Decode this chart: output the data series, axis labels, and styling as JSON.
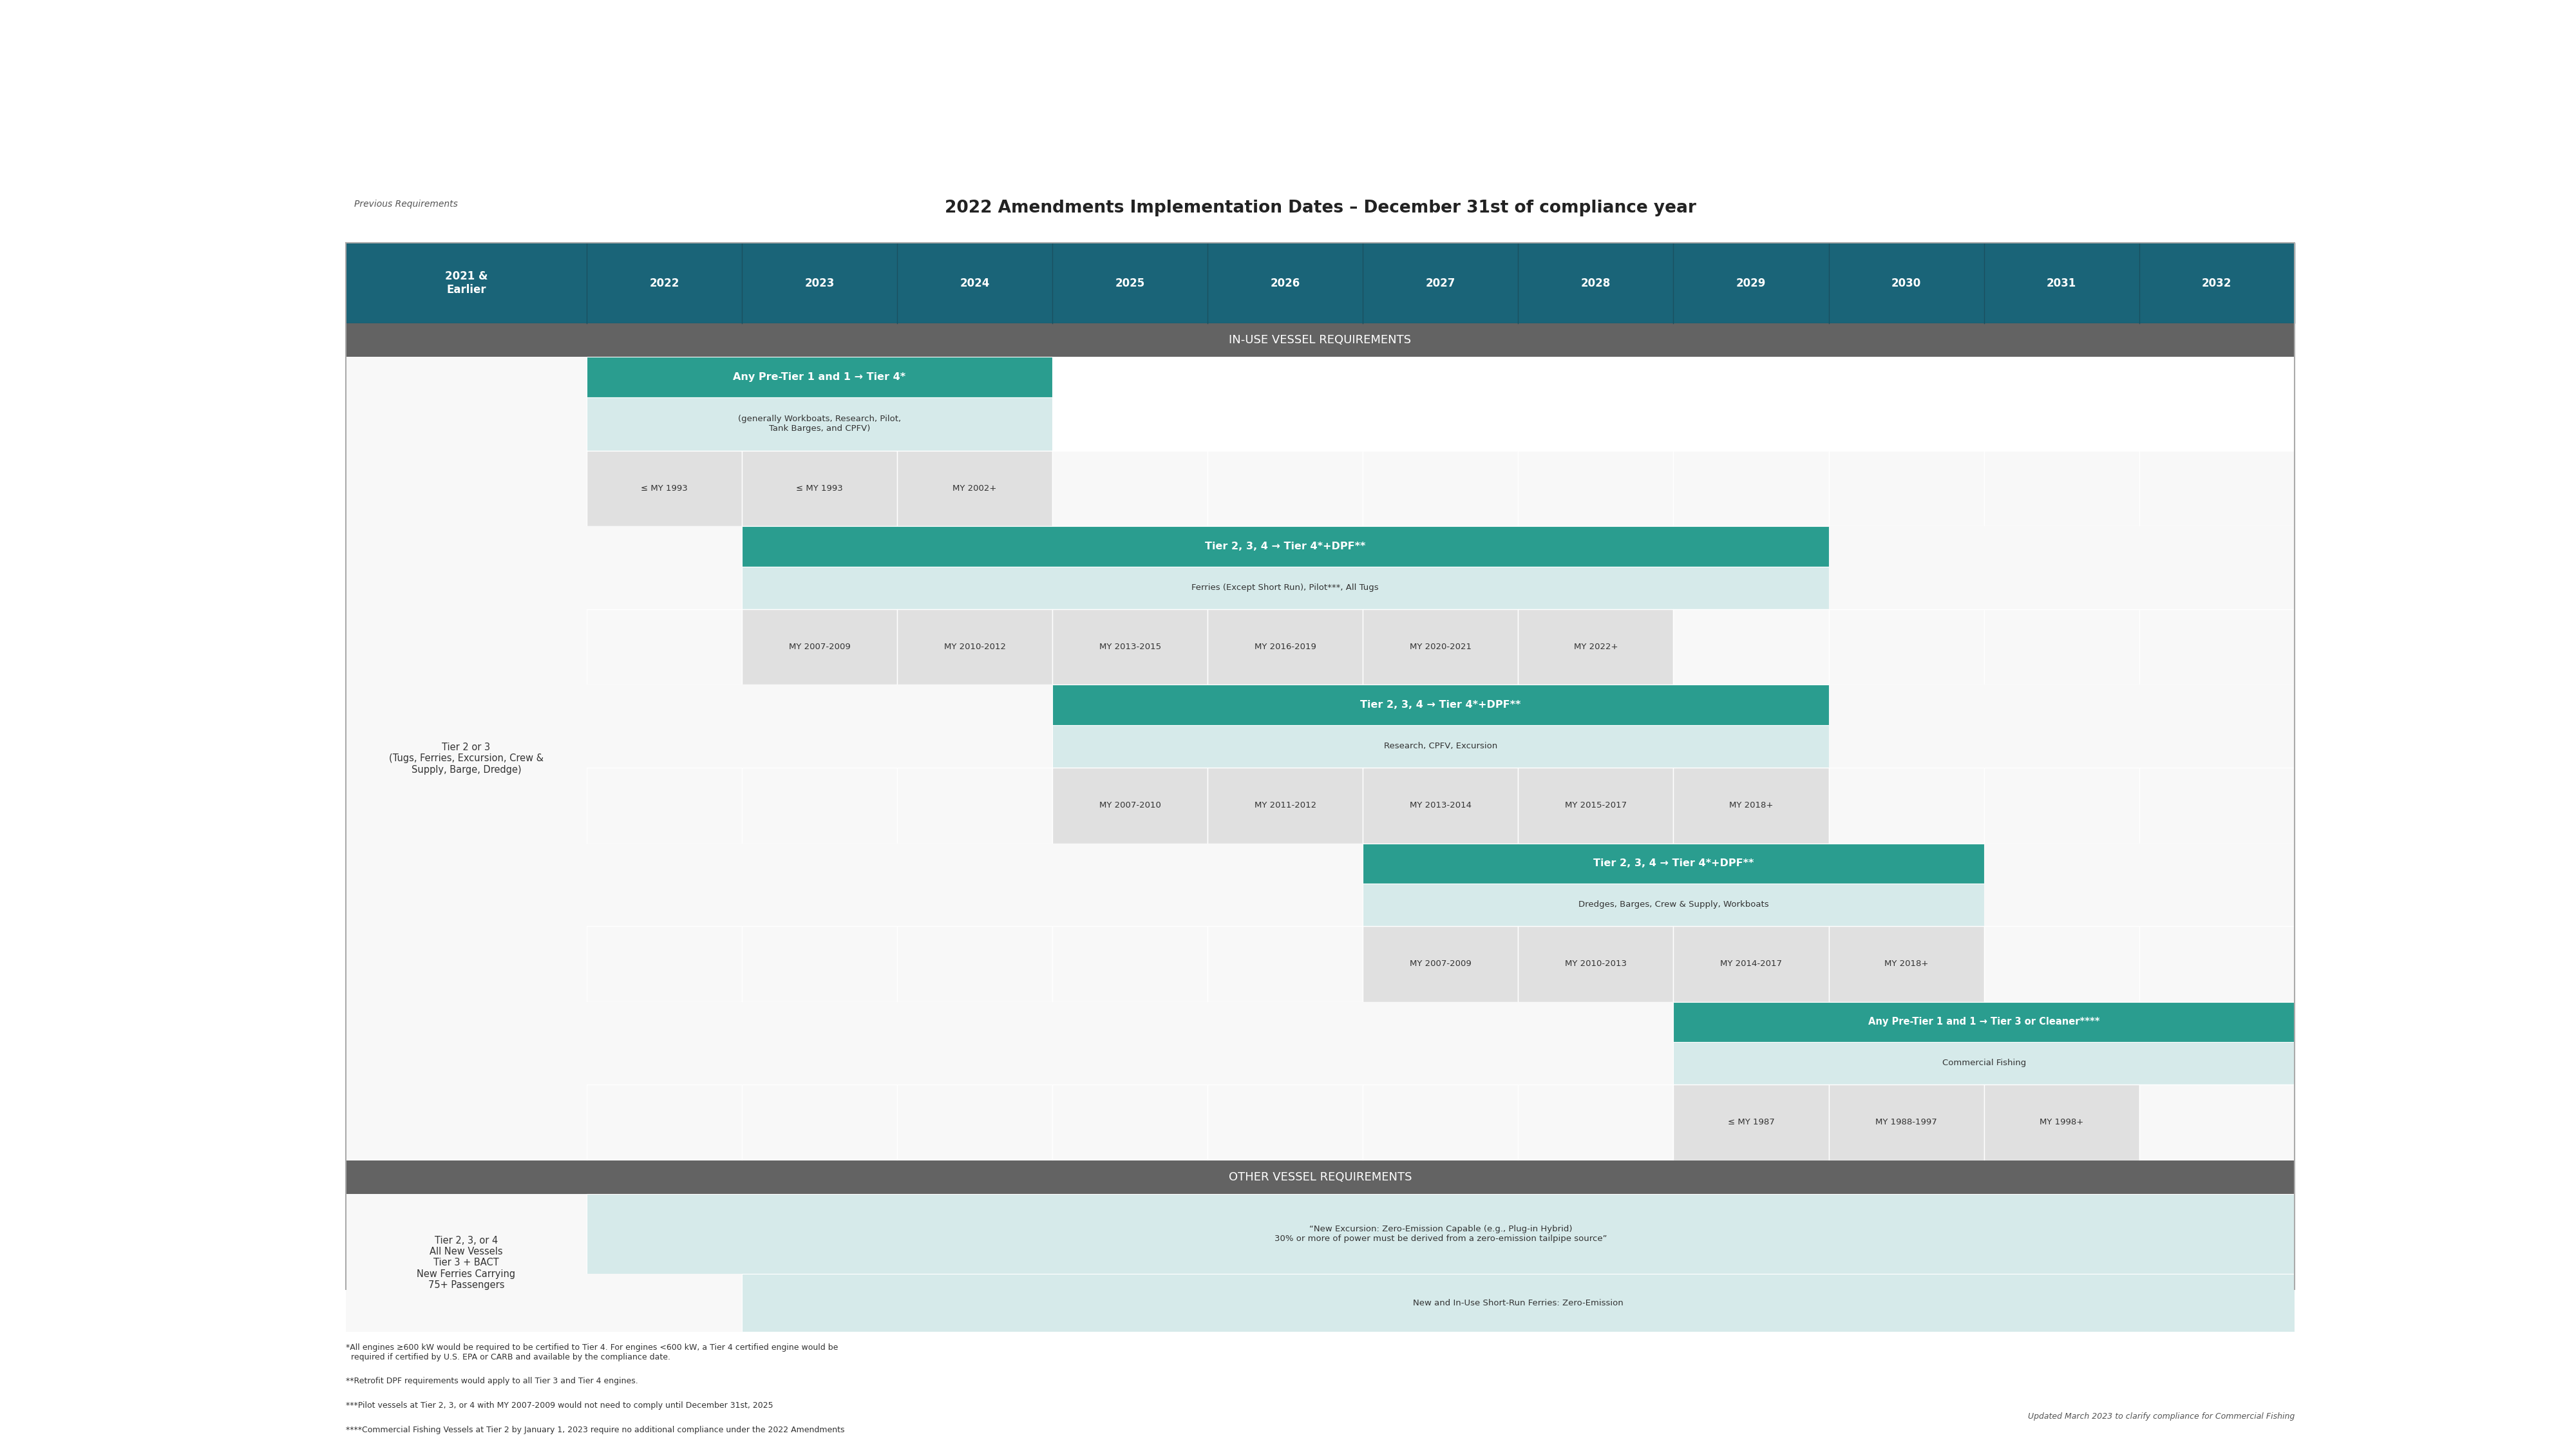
{
  "title": "2022 Amendments Implementation Dates – December 31st of compliance year",
  "prev_req_label": "Previous Requirements",
  "col_years": [
    "2021 &\nEarlier",
    "2022",
    "2023",
    "2024",
    "2025",
    "2026",
    "2027",
    "2028",
    "2029",
    "2030",
    "2031",
    "2032"
  ],
  "header_bg": "#1a6478",
  "section_bg_gray": "#636363",
  "teal_dark": "#2a9d8f",
  "cell_light": "#d6eaea",
  "cell_gray": "#e0e0e0",
  "cell_white": "#f8f8f8",
  "bg_color": "#ffffff",
  "title_color": "#222222",
  "left_label_tier23": "Tier 2 or 3\n(Tugs, Ferries, Excursion, Crew &\nSupply, Barge, Dredge)",
  "left_label_other": "Tier 2, 3, or 4\nAll New Vessels\nTier 3 + BACT\nNew Ferries Carrying\n75+ Passengers",
  "update_note": "Updated March 2023 to clarify compliance for Commercial Fishing"
}
